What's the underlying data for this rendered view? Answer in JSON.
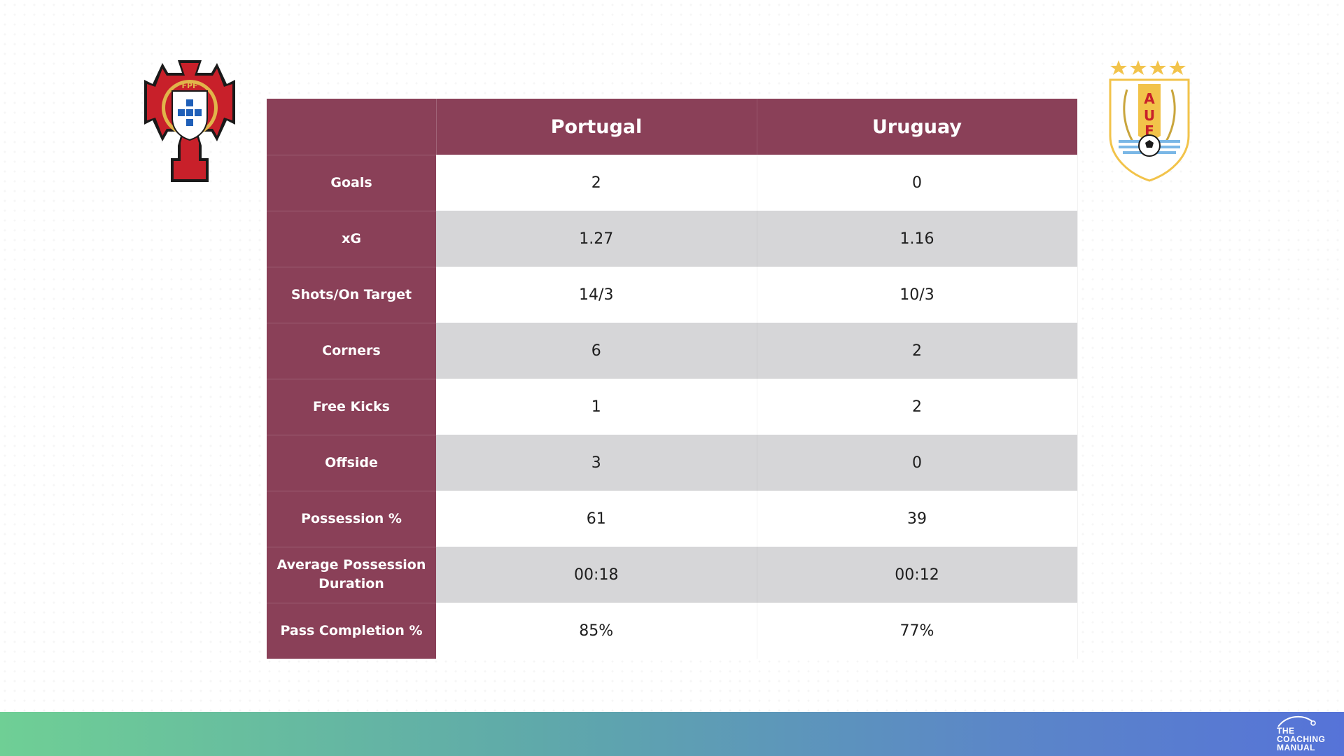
{
  "teams": {
    "home": "Portugal",
    "away": "Uruguay"
  },
  "crests": {
    "home_letters": "FPF",
    "away_letters": [
      "A",
      "U",
      "F"
    ]
  },
  "stats": [
    {
      "label": "Goals",
      "home": "2",
      "away": "0"
    },
    {
      "label": "xG",
      "home": "1.27",
      "away": "1.16"
    },
    {
      "label": "Shots/On Target",
      "home": "14/3",
      "away": "10/3"
    },
    {
      "label": "Corners",
      "home": "6",
      "away": "2"
    },
    {
      "label": "Free Kicks",
      "home": "1",
      "away": "2"
    },
    {
      "label": "Offside",
      "home": "3",
      "away": "0"
    },
    {
      "label": "Possession %",
      "home": "61",
      "away": "39"
    },
    {
      "label": "Average Possession Duration",
      "home": "00:18",
      "away": "00:12"
    },
    {
      "label": "Pass Completion %",
      "home": "85%",
      "away": "77%"
    }
  ],
  "branding": {
    "line1": "THE",
    "line2": "COACHING",
    "line3": "MANUAL"
  },
  "colors": {
    "header": "#8a4058",
    "row_alt": "#d6d6d8",
    "footer_start": "#6fcf95",
    "footer_end": "#5673d8"
  }
}
